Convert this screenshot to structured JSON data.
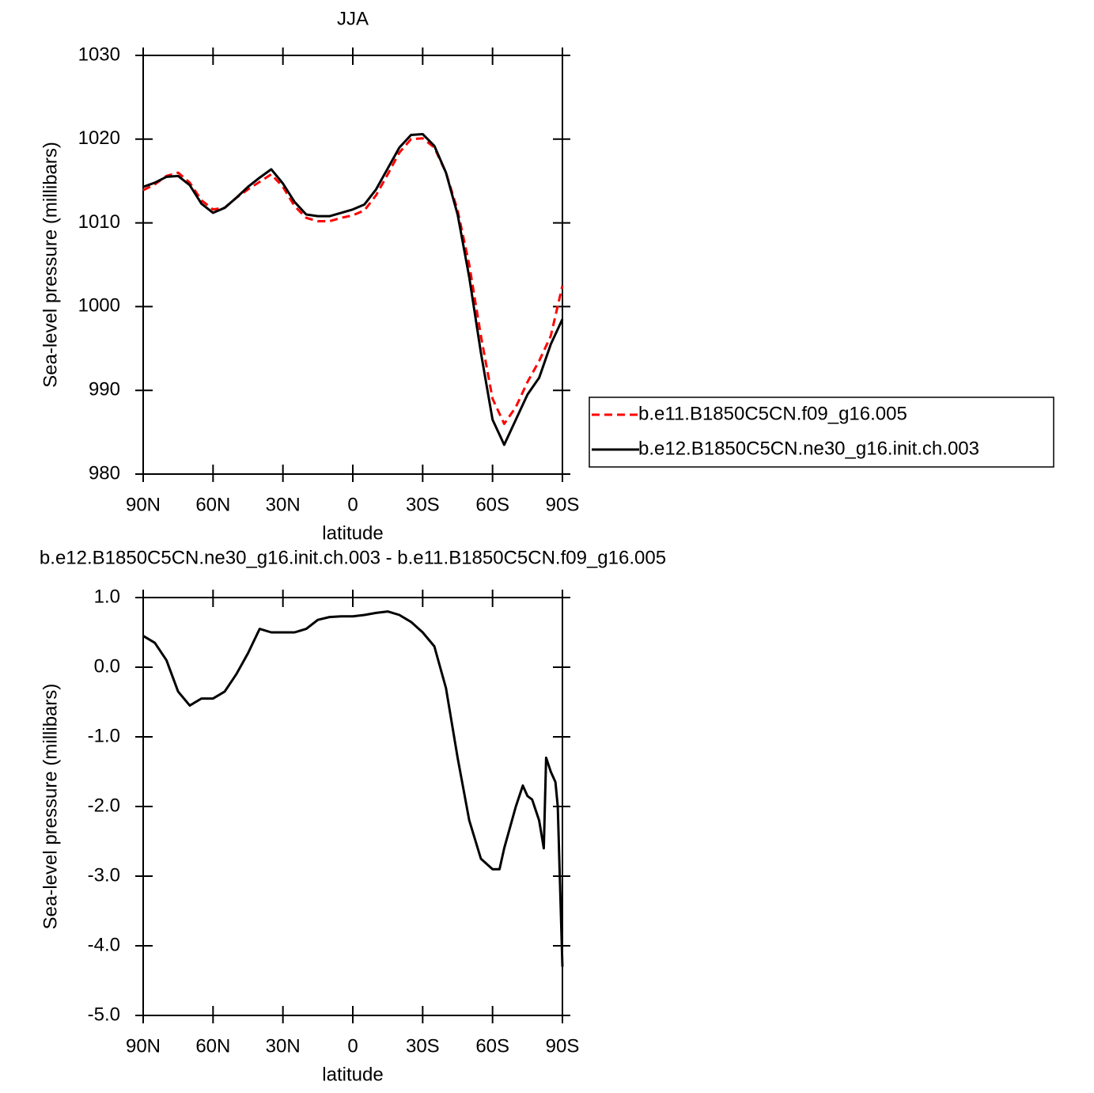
{
  "chart_data": [
    {
      "type": "line",
      "title": "JJA",
      "x_label": "latitude",
      "y_label": "Sea-level pressure (millibars)",
      "x": [
        90,
        85,
        80,
        75,
        70,
        65,
        60,
        55,
        50,
        45,
        40,
        35,
        30,
        25,
        20,
        15,
        10,
        5,
        0,
        -5,
        -10,
        -15,
        -20,
        -25,
        -30,
        -35,
        -40,
        -45,
        -50,
        -55,
        -60,
        -65,
        -70,
        -75,
        -80,
        -85,
        -90
      ],
      "series": [
        {
          "name": "b.e11.B1850C5CN.f09_g16.005",
          "color": "#ff0000",
          "dash": true,
          "values": [
            1013.9,
            1014.6,
            1015.6,
            1016.0,
            1014.8,
            1012.7,
            1011.6,
            1011.8,
            1013.0,
            1014.0,
            1014.9,
            1015.8,
            1014.3,
            1012.0,
            1010.6,
            1010.2,
            1010.2,
            1010.6,
            1010.9,
            1011.5,
            1013.3,
            1015.8,
            1018.4,
            1020.0,
            1020.1,
            1019.0,
            1016.0,
            1011.5,
            1005.0,
            996.5,
            989.0,
            986.0,
            988.0,
            991.0,
            993.5,
            996.5,
            1002.5
          ]
        },
        {
          "name": "b.e12.B1850C5CN.ne30_g16.init.ch.003",
          "color": "#000000",
          "dash": false,
          "values": [
            1014.3,
            1014.8,
            1015.5,
            1015.6,
            1014.5,
            1012.3,
            1011.2,
            1011.8,
            1013.0,
            1014.3,
            1015.4,
            1016.4,
            1014.7,
            1012.5,
            1011.0,
            1010.8,
            1010.8,
            1011.2,
            1011.6,
            1012.2,
            1014.0,
            1016.5,
            1019.0,
            1020.5,
            1020.6,
            1019.2,
            1016.0,
            1011.0,
            1003.5,
            994.5,
            986.5,
            983.5,
            986.5,
            989.5,
            991.5,
            995.5,
            998.5
          ]
        }
      ],
      "xlim": [
        90,
        -90
      ],
      "xticks": [
        {
          "value": 90,
          "label": "90N"
        },
        {
          "value": 60,
          "label": "60N"
        },
        {
          "value": 30,
          "label": "30N"
        },
        0,
        {
          "value": -30,
          "label": "30S"
        },
        {
          "value": -60,
          "label": "60S"
        },
        {
          "value": -90,
          "label": "90S"
        }
      ],
      "ylim": [
        980,
        1030
      ],
      "yticks": [
        980,
        990,
        1000,
        1010,
        1020,
        1030
      ],
      "legend": "right"
    },
    {
      "type": "line",
      "title": "b.e12.B1850C5CN.ne30_g16.init.ch.003 - b.e11.B1850C5CN.f09_g16.005",
      "x_label": "latitude",
      "y_label": "Sea-level pressure (millibars)",
      "x": [
        90,
        85,
        80,
        75,
        70,
        65,
        60,
        55,
        50,
        45,
        40,
        35,
        30,
        25,
        20,
        15,
        10,
        5,
        0,
        -5,
        -10,
        -15,
        -20,
        -25,
        -30,
        -35,
        -40,
        -45,
        -50,
        -55,
        -60,
        -63,
        -65,
        -70,
        -73,
        -75,
        -77,
        -80,
        -82,
        -83,
        -85,
        -87,
        -88,
        -90
      ],
      "series": [
        {
          "color": "#000000",
          "dash": false,
          "values": [
            0.45,
            0.35,
            0.1,
            -0.35,
            -0.55,
            -0.45,
            -0.45,
            -0.35,
            -0.1,
            0.2,
            0.55,
            0.5,
            0.5,
            0.5,
            0.55,
            0.68,
            0.72,
            0.73,
            0.73,
            0.75,
            0.78,
            0.8,
            0.75,
            0.65,
            0.5,
            0.3,
            -0.3,
            -1.3,
            -2.2,
            -2.75,
            -2.9,
            -2.9,
            -2.6,
            -2.0,
            -1.7,
            -1.85,
            -1.9,
            -2.2,
            -2.6,
            -1.3,
            -1.5,
            -1.65,
            -2.0,
            -4.3
          ]
        }
      ],
      "xlim": [
        90,
        -90
      ],
      "xticks": [
        {
          "value": 90,
          "label": "90N"
        },
        {
          "value": 60,
          "label": "60N"
        },
        {
          "value": 30,
          "label": "30N"
        },
        0,
        {
          "value": -30,
          "label": "30S"
        },
        {
          "value": -60,
          "label": "60S"
        },
        {
          "value": -90,
          "label": "90S"
        }
      ],
      "ylim": [
        -5,
        1
      ],
      "yticks": [
        {
          "value": -5,
          "label": "-5.0"
        },
        {
          "value": -4,
          "label": "-4.0"
        },
        {
          "value": -3,
          "label": "-3.0"
        },
        {
          "value": -2,
          "label": "-2.0"
        },
        {
          "value": -1,
          "label": "-1.0"
        },
        {
          "value": 0,
          "label": "0.0"
        },
        {
          "value": 1,
          "label": "1.0"
        }
      ]
    }
  ]
}
